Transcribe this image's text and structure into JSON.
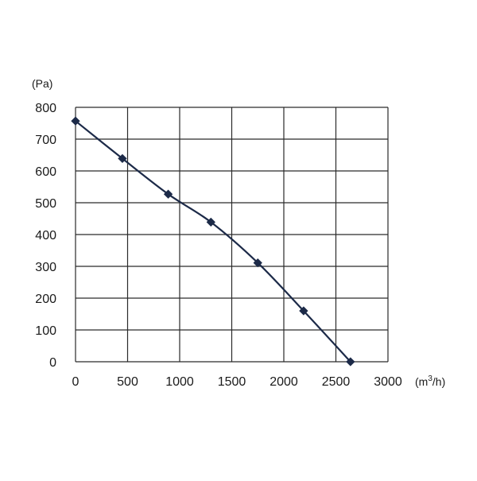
{
  "chart_data": {
    "type": "line",
    "title": "",
    "xlabel": "",
    "ylabel": "",
    "x_unit": {
      "base": "(m",
      "sup": "3",
      "tail": "/h)"
    },
    "y_unit": "(Pa)",
    "xlim": [
      0,
      3000
    ],
    "ylim": [
      0,
      800
    ],
    "x_ticks": [
      "0",
      "500",
      "1000",
      "1500",
      "2000",
      "2500",
      "3000"
    ],
    "y_ticks": [
      "0",
      "100",
      "200",
      "300",
      "400",
      "500",
      "600",
      "700",
      "800"
    ],
    "grid": true,
    "legend": "none",
    "series": [
      {
        "x": [
          0,
          450,
          890,
          1300,
          1750,
          2190,
          2640
        ],
        "y": [
          757,
          639,
          527,
          439,
          311,
          160,
          0
        ]
      }
    ],
    "colors": {
      "line": "#1c2a48",
      "grid": "#2a2a2a",
      "marker": "#1c2a48"
    }
  }
}
